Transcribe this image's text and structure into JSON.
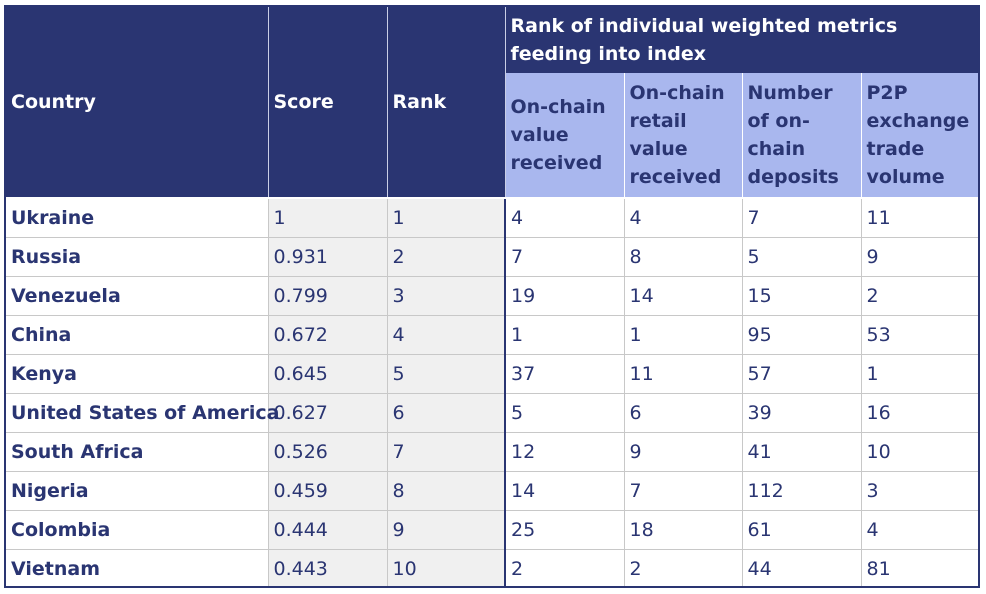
{
  "table": {
    "headers": {
      "country": "Country",
      "score": "Score",
      "rank": "Rank",
      "group": "Rank of individual weighted metrics feeding into index",
      "metrics": [
        "On-chain value received",
        "On-chain retail value received",
        "Number of on-chain deposits",
        "P2P exchange trade volume"
      ]
    },
    "rows": [
      {
        "country": "Ukraine",
        "score": "1",
        "rank": "1",
        "m1": "4",
        "m2": "4",
        "m3": "7",
        "m4": "11"
      },
      {
        "country": "Russia",
        "score": "0.931",
        "rank": "2",
        "m1": "7",
        "m2": "8",
        "m3": "5",
        "m4": "9"
      },
      {
        "country": "Venezuela",
        "score": "0.799",
        "rank": "3",
        "m1": "19",
        "m2": "14",
        "m3": "15",
        "m4": "2"
      },
      {
        "country": "China",
        "score": "0.672",
        "rank": "4",
        "m1": "1",
        "m2": "1",
        "m3": "95",
        "m4": "53"
      },
      {
        "country": "Kenya",
        "score": "0.645",
        "rank": "5",
        "m1": "37",
        "m2": "11",
        "m3": "57",
        "m4": "1"
      },
      {
        "country": "United States of America",
        "score": "0.627",
        "rank": "6",
        "m1": "5",
        "m2": "6",
        "m3": "39",
        "m4": "16"
      },
      {
        "country": "South Africa",
        "score": "0.526",
        "rank": "7",
        "m1": "12",
        "m2": "9",
        "m3": "41",
        "m4": "10"
      },
      {
        "country": "Nigeria",
        "score": "0.459",
        "rank": "8",
        "m1": "14",
        "m2": "7",
        "m3": "112",
        "m4": "3"
      },
      {
        "country": "Colombia",
        "score": "0.444",
        "rank": "9",
        "m1": "25",
        "m2": "18",
        "m3": "61",
        "m4": "4"
      },
      {
        "country": "Vietnam",
        "score": "0.443",
        "rank": "10",
        "m1": "2",
        "m2": "2",
        "m3": "44",
        "m4": "81"
      }
    ]
  },
  "colors": {
    "header_dark": "#2a3572",
    "header_light": "#a9b7ee",
    "shaded_cell": "#f0f0f0",
    "text": "#2a3572"
  }
}
